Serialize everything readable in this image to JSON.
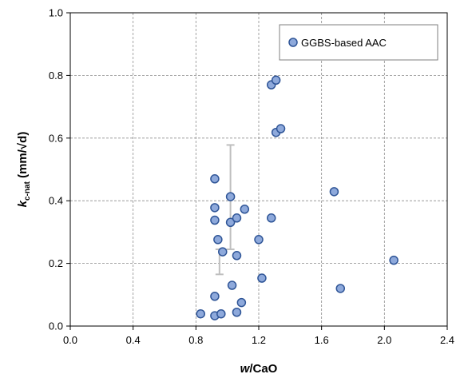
{
  "chart_data": {
    "type": "scatter",
    "xlabel": {
      "italic": "w",
      "rest": "/CaO"
    },
    "ylabel": {
      "italic": "k",
      "sub": "c-nat",
      "rest": " (mm/√d)"
    },
    "xlim": [
      0.0,
      2.4
    ],
    "ylim": [
      0.0,
      1.0
    ],
    "x_ticks": [
      "0.0",
      "0.4",
      "0.8",
      "1.2",
      "1.6",
      "2.0",
      "2.4"
    ],
    "y_ticks": [
      "0.0",
      "0.2",
      "0.4",
      "0.6",
      "0.8",
      "1.0"
    ],
    "grid": true,
    "legend_position": "top-right",
    "series": [
      {
        "name": "GGBS-based AAC",
        "color": "#8ea9db",
        "edge_color": "#2f5597",
        "points": [
          {
            "x": 0.83,
            "y": 0.039
          },
          {
            "x": 0.92,
            "y": 0.033
          },
          {
            "x": 0.96,
            "y": 0.039
          },
          {
            "x": 1.06,
            "y": 0.044
          },
          {
            "x": 1.09,
            "y": 0.075
          },
          {
            "x": 0.92,
            "y": 0.095
          },
          {
            "x": 1.03,
            "y": 0.13
          },
          {
            "x": 1.22,
            "y": 0.153
          },
          {
            "x": 1.06,
            "y": 0.225
          },
          {
            "x": 0.97,
            "y": 0.237
          },
          {
            "x": 0.94,
            "y": 0.276
          },
          {
            "x": 1.2,
            "y": 0.276
          },
          {
            "x": 1.02,
            "y": 0.331
          },
          {
            "x": 0.92,
            "y": 0.338
          },
          {
            "x": 1.06,
            "y": 0.345
          },
          {
            "x": 1.28,
            "y": 0.345
          },
          {
            "x": 1.11,
            "y": 0.373
          },
          {
            "x": 0.92,
            "y": 0.378
          },
          {
            "x": 1.02,
            "y": 0.413
          },
          {
            "x": 0.92,
            "y": 0.47
          },
          {
            "x": 1.68,
            "y": 0.429
          },
          {
            "x": 1.72,
            "y": 0.12
          },
          {
            "x": 2.06,
            "y": 0.21
          },
          {
            "x": 1.31,
            "y": 0.618
          },
          {
            "x": 1.34,
            "y": 0.63
          },
          {
            "x": 1.28,
            "y": 0.77
          },
          {
            "x": 1.31,
            "y": 0.785
          }
        ]
      }
    ],
    "error_bars": [
      {
        "x": 0.95,
        "low": 0.165,
        "high": 0.245,
        "color": "#bfbfbf"
      },
      {
        "x": 1.02,
        "low": 0.245,
        "high": 0.578,
        "color": "#bfbfbf"
      }
    ]
  }
}
